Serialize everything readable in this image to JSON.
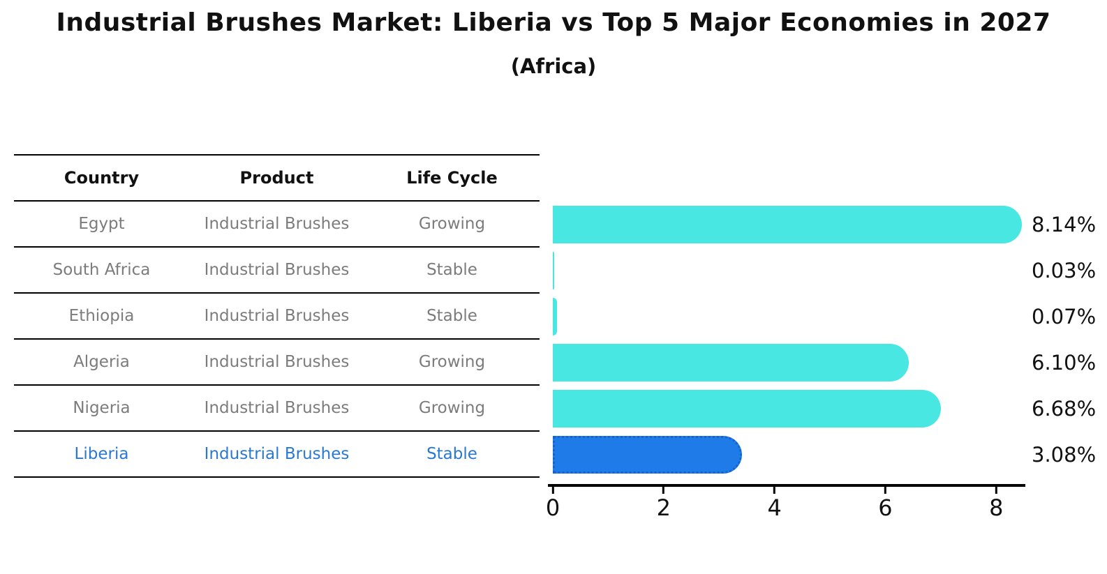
{
  "title": "Industrial Brushes Market: Liberia vs Top 5 Major Economies in 2027",
  "subtitle": "(Africa)",
  "table": {
    "headers": [
      "Country",
      "Product",
      "Life Cycle"
    ],
    "rows": [
      {
        "country": "Egypt",
        "product": "Industrial Brushes",
        "life_cycle": "Growing"
      },
      {
        "country": "South Africa",
        "product": "Industrial Brushes",
        "life_cycle": "Stable"
      },
      {
        "country": "Ethiopia",
        "product": "Industrial Brushes",
        "life_cycle": "Stable"
      },
      {
        "country": "Algeria",
        "product": "Industrial Brushes",
        "life_cycle": "Growing"
      },
      {
        "country": "Nigeria",
        "product": "Industrial Brushes",
        "life_cycle": "Growing"
      },
      {
        "country": "Liberia",
        "product": "Industrial Brushes",
        "life_cycle": "Stable"
      }
    ],
    "highlighted_country": "Liberia"
  },
  "chart_data": {
    "type": "bar",
    "orientation": "horizontal",
    "title": "Industrial Brushes Market: Liberia vs Top 5 Major Economies in 2027",
    "subtitle": "(Africa)",
    "categories": [
      "Egypt",
      "South Africa",
      "Ethiopia",
      "Algeria",
      "Nigeria",
      "Liberia"
    ],
    "values": [
      8.14,
      0.03,
      0.07,
      6.1,
      6.68,
      3.08
    ],
    "value_labels": [
      "8.14%",
      "0.03%",
      "0.07%",
      "6.10%",
      "6.68%",
      "3.08%"
    ],
    "xlim": [
      0,
      8.5
    ],
    "x_ticks": [
      "0",
      "2",
      "4",
      "6",
      "8"
    ],
    "x_tick_values": [
      0,
      2,
      4,
      6,
      8
    ],
    "grid": "off",
    "legend_position": "none",
    "highlight_index": 5,
    "colors": {
      "bar": "#48E7E1",
      "highlight_bar": "#1E7BE8",
      "highlight_border": "#1463CE",
      "highlight_text": "#2979D2",
      "row_text": "#7C7C7C",
      "axis": "#000000"
    }
  }
}
